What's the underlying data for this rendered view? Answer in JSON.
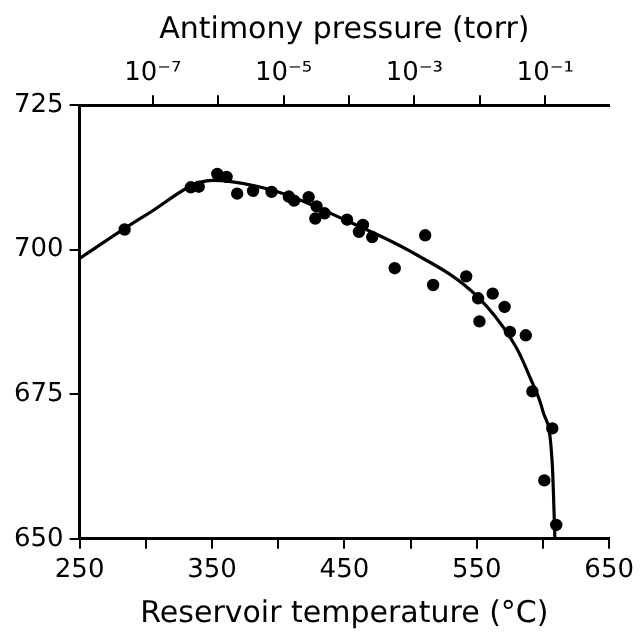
{
  "chart_data": {
    "type": "scatter",
    "xlabel": "Reservoir temperature (°C)",
    "x2label": "Antimony pressure (torr)",
    "xlim": [
      250,
      650
    ],
    "xticks": [
      250,
      {
        "value": 300,
        "label": null
      },
      350,
      {
        "value": 400,
        "label": null
      },
      450,
      {
        "value": 500,
        "label": null
      },
      550,
      {
        "value": 600,
        "label": null
      },
      650
    ],
    "x2lim": [
      7.6e-09,
      0.95
    ],
    "x2ticks": [
      {
        "value": 1e-07,
        "label": "10⁻⁷"
      },
      {
        "value": 1e-06,
        "label": null
      },
      {
        "value": 1e-05,
        "label": "10⁻⁵"
      },
      {
        "value": 0.0001,
        "label": null
      },
      {
        "value": 0.001,
        "label": "10⁻³"
      },
      {
        "value": 0.01,
        "label": null
      },
      {
        "value": 0.1,
        "label": "10⁻¹"
      }
    ],
    "log": "x2",
    "ylim": [
      650,
      725
    ],
    "yticks": [
      650,
      675,
      700,
      725
    ],
    "grid": false,
    "legend": false,
    "series": [
      {
        "color": "#000000",
        "marker": "circle",
        "x": [
          284,
          334,
          340,
          354,
          361,
          369,
          381,
          395,
          408,
          412,
          423,
          429,
          428,
          435,
          452,
          464,
          461,
          471,
          488,
          511,
          517,
          542,
          551,
          552,
          562,
          571,
          575,
          587,
          592,
          607,
          601,
          610
        ],
        "values": [
          703.5,
          710.8,
          710.9,
          713.1,
          712.6,
          709.7,
          710.2,
          710,
          709.2,
          708.5,
          709.1,
          707.5,
          705.4,
          706.3,
          705.2,
          704.3,
          703.1,
          702.2,
          696.8,
          702.5,
          693.9,
          695.4,
          691.6,
          687.6,
          692.4,
          690.1,
          685.8,
          685.2,
          675.5,
          669.1,
          660.1,
          652.4
        ]
      },
      {
        "type": "line",
        "color": "#000000",
        "marker": "none",
        "x": [
          250,
          300,
          350,
          400,
          450,
          500,
          550,
          580,
          590,
          600,
          607,
          609
        ],
        "values": [
          698.5,
          706,
          712,
          710,
          705.2,
          699.7,
          692,
          683,
          678,
          672,
          663,
          650
        ]
      }
    ]
  }
}
